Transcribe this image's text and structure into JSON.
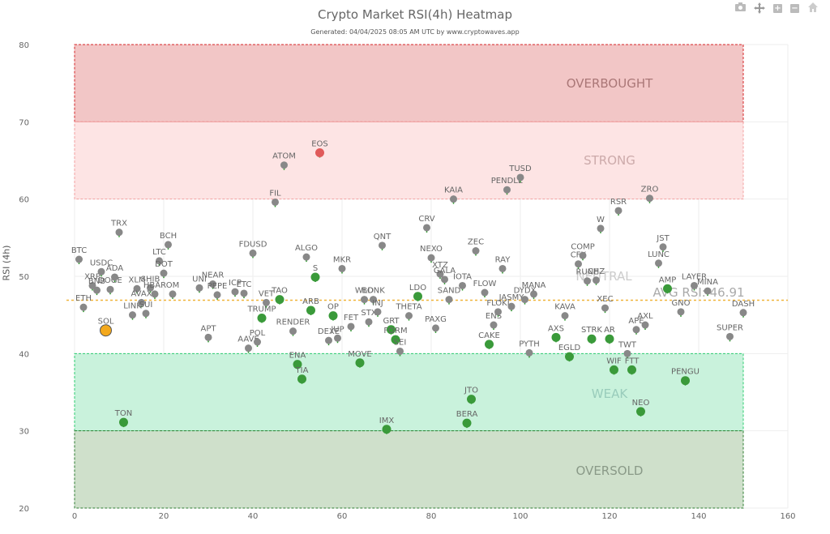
{
  "header": {
    "title": "Crypto Market RSI(4h) Heatmap",
    "subtitle": "Generated: 04/04/2025 08:05 AM UTC by www.cryptowaves.app"
  },
  "modebar": {
    "buttons": [
      {
        "name": "camera-icon",
        "glyph": "📷"
      },
      {
        "name": "pan-icon",
        "glyph": "✥"
      },
      {
        "name": "zoom-in-icon",
        "glyph": "+"
      },
      {
        "name": "zoom-out-icon",
        "glyph": "−"
      },
      {
        "name": "home-icon",
        "glyph": "⌂"
      }
    ]
  },
  "colors": {
    "overbought_fill": "#f2c6c6",
    "overbought_border": "#d62728",
    "strong_fill": "#fde4e4",
    "strong_border": "#f3a0a0",
    "weak_fill": "#c9f2dc",
    "weak_border": "#2ecc71",
    "oversold_fill": "#cfe0cb",
    "oversold_border": "#2e7d32",
    "avg_line": "#f0b43a",
    "dot_neutral": "#888888",
    "dot_weak": "#3a9a3a",
    "dot_strong": "#e05a5a",
    "dot_highlight": "#f4a91c"
  },
  "chart_data": {
    "type": "scatter",
    "title": "Crypto Market RSI(4h) Heatmap",
    "subtitle": "Generated: 04/04/2025 08:05 AM UTC by www.cryptowaves.app",
    "xlabel": "",
    "ylabel": "RSI (4h)",
    "xlim": [
      0,
      160
    ],
    "ylim": [
      20,
      80
    ],
    "xticks": [
      0,
      20,
      40,
      60,
      80,
      100,
      120,
      140,
      160
    ],
    "yticks": [
      20,
      30,
      40,
      50,
      60,
      70,
      80
    ],
    "grid": true,
    "zones": [
      {
        "label": "OVERBOUGHT",
        "y0": 70,
        "y1": 80,
        "x0": 0,
        "x1": 150
      },
      {
        "label": "STRONG",
        "y0": 60,
        "y1": 70,
        "x0": 0,
        "x1": 150
      },
      {
        "label": "NEUTRAL",
        "y0": 40,
        "y1": 60,
        "x0": 0,
        "x1": 150
      },
      {
        "label": "WEAK",
        "y0": 30,
        "y1": 40,
        "x0": 0,
        "x1": 150
      },
      {
        "label": "OVERSOLD",
        "y0": 20,
        "y1": 30,
        "x0": 0,
        "x1": 150
      }
    ],
    "average": {
      "label": "AVG RSI: 46.91",
      "value": 46.91
    },
    "points": [
      {
        "name": "BTC",
        "x": 1,
        "y": 52.2
      },
      {
        "name": "ETH",
        "x": 2,
        "y": 46.0
      },
      {
        "name": "XRP",
        "x": 4,
        "y": 48.8
      },
      {
        "name": "BNB",
        "x": 5,
        "y": 48.2
      },
      {
        "name": "USDC",
        "x": 6,
        "y": 50.6
      },
      {
        "name": "SOL",
        "x": 7,
        "y": 43.0,
        "highlight": true
      },
      {
        "name": "DOGE",
        "x": 8,
        "y": 48.3
      },
      {
        "name": "ADA",
        "x": 9,
        "y": 49.9
      },
      {
        "name": "TRX",
        "x": 10,
        "y": 55.7
      },
      {
        "name": "TON",
        "x": 11,
        "y": 31.1
      },
      {
        "name": "LINK",
        "x": 13,
        "y": 45.0
      },
      {
        "name": "XLM",
        "x": 14,
        "y": 48.4
      },
      {
        "name": "AVAX",
        "x": 15,
        "y": 46.6
      },
      {
        "name": "SUI",
        "x": 16,
        "y": 45.2
      },
      {
        "name": "SHIB",
        "x": 17,
        "y": 48.5
      },
      {
        "name": "HBAR",
        "x": 18,
        "y": 47.7
      },
      {
        "name": "LTC",
        "x": 19,
        "y": 52.0
      },
      {
        "name": "DOT",
        "x": 20,
        "y": 50.4
      },
      {
        "name": "BCH",
        "x": 21,
        "y": 54.1
      },
      {
        "name": "OM",
        "x": 22,
        "y": 47.7
      },
      {
        "name": "UNI",
        "x": 28,
        "y": 48.5
      },
      {
        "name": "APT",
        "x": 30,
        "y": 42.1
      },
      {
        "name": "NEAR",
        "x": 31,
        "y": 49.0
      },
      {
        "name": "PEPE",
        "x": 32,
        "y": 47.6
      },
      {
        "name": "ICP",
        "x": 36,
        "y": 48.0
      },
      {
        "name": "ETC",
        "x": 38,
        "y": 47.8
      },
      {
        "name": "AAVE",
        "x": 39,
        "y": 40.7
      },
      {
        "name": "FDUSD",
        "x": 40,
        "y": 53.0
      },
      {
        "name": "POL",
        "x": 41,
        "y": 41.5
      },
      {
        "name": "TRUMP",
        "x": 42,
        "y": 44.6
      },
      {
        "name": "VET",
        "x": 43,
        "y": 46.6
      },
      {
        "name": "FIL",
        "x": 45,
        "y": 59.6
      },
      {
        "name": "TAO",
        "x": 46,
        "y": 47.0
      },
      {
        "name": "ATOM",
        "x": 47,
        "y": 64.4
      },
      {
        "name": "RENDER",
        "x": 49,
        "y": 42.9
      },
      {
        "name": "ENA",
        "x": 50,
        "y": 38.6
      },
      {
        "name": "TIA",
        "x": 51,
        "y": 36.7
      },
      {
        "name": "ALGO",
        "x": 52,
        "y": 52.5
      },
      {
        "name": "ARB",
        "x": 53,
        "y": 45.6
      },
      {
        "name": "S",
        "x": 54,
        "y": 49.9
      },
      {
        "name": "EOS",
        "x": 55,
        "y": 66.0
      },
      {
        "name": "DEXE",
        "x": 57,
        "y": 41.7
      },
      {
        "name": "OP",
        "x": 58,
        "y": 44.9
      },
      {
        "name": "JUP",
        "x": 59,
        "y": 42.0
      },
      {
        "name": "MKR",
        "x": 60,
        "y": 51.0
      },
      {
        "name": "FET",
        "x": 62,
        "y": 43.5
      },
      {
        "name": "MOVE",
        "x": 64,
        "y": 38.8
      },
      {
        "name": "WLD",
        "x": 65,
        "y": 47.0
      },
      {
        "name": "STX",
        "x": 66,
        "y": 44.1
      },
      {
        "name": "BONK",
        "x": 67,
        "y": 47.0
      },
      {
        "name": "INJ",
        "x": 68,
        "y": 45.4
      },
      {
        "name": "QNT",
        "x": 69,
        "y": 54.0
      },
      {
        "name": "IMX",
        "x": 70,
        "y": 30.2
      },
      {
        "name": "GRT",
        "x": 71,
        "y": 43.1
      },
      {
        "name": "FORM",
        "x": 72,
        "y": 41.8
      },
      {
        "name": "SEI",
        "x": 73,
        "y": 40.3
      },
      {
        "name": "THETA",
        "x": 75,
        "y": 44.9
      },
      {
        "name": "LDO",
        "x": 77,
        "y": 47.4
      },
      {
        "name": "CRV",
        "x": 79,
        "y": 56.3
      },
      {
        "name": "NEXO",
        "x": 80,
        "y": 52.4
      },
      {
        "name": "PAXG",
        "x": 81,
        "y": 43.3
      },
      {
        "name": "XTZ",
        "x": 82,
        "y": 50.3
      },
      {
        "name": "GALA",
        "x": 83,
        "y": 49.6
      },
      {
        "name": "SAND",
        "x": 84,
        "y": 47.0
      },
      {
        "name": "KAIA",
        "x": 85,
        "y": 60.0
      },
      {
        "name": "IOTA",
        "x": 87,
        "y": 48.8
      },
      {
        "name": "BERA",
        "x": 88,
        "y": 31.0
      },
      {
        "name": "JTO",
        "x": 89,
        "y": 34.1
      },
      {
        "name": "ZEC",
        "x": 90,
        "y": 53.3
      },
      {
        "name": "FLOW",
        "x": 92,
        "y": 47.9
      },
      {
        "name": "CAKE",
        "x": 93,
        "y": 41.2
      },
      {
        "name": "ENS",
        "x": 94,
        "y": 43.7
      },
      {
        "name": "FLOKI",
        "x": 95,
        "y": 45.4
      },
      {
        "name": "RAY",
        "x": 96,
        "y": 51.0
      },
      {
        "name": "PENDLE",
        "x": 97,
        "y": 61.2
      },
      {
        "name": "JASMY",
        "x": 98,
        "y": 46.1
      },
      {
        "name": "TUSD",
        "x": 100,
        "y": 62.8
      },
      {
        "name": "DYDX",
        "x": 101,
        "y": 47.0
      },
      {
        "name": "PYTH",
        "x": 102,
        "y": 40.1
      },
      {
        "name": "MANA",
        "x": 103,
        "y": 47.7
      },
      {
        "name": "AXS",
        "x": 108,
        "y": 42.1
      },
      {
        "name": "KAVA",
        "x": 110,
        "y": 44.9
      },
      {
        "name": "EGLD",
        "x": 111,
        "y": 39.6
      },
      {
        "name": "CFX",
        "x": 113,
        "y": 51.6
      },
      {
        "name": "COMP",
        "x": 114,
        "y": 52.7
      },
      {
        "name": "RUNE",
        "x": 115,
        "y": 49.4
      },
      {
        "name": "STRK",
        "x": 116,
        "y": 41.9
      },
      {
        "name": "CHZ",
        "x": 117,
        "y": 49.5
      },
      {
        "name": "W",
        "x": 118,
        "y": 56.2
      },
      {
        "name": "XEC",
        "x": 119,
        "y": 45.9
      },
      {
        "name": "AR",
        "x": 120,
        "y": 41.9
      },
      {
        "name": "WIF",
        "x": 121,
        "y": 37.9
      },
      {
        "name": "RSR",
        "x": 122,
        "y": 58.5
      },
      {
        "name": "TWT",
        "x": 124,
        "y": 40.0
      },
      {
        "name": "FTT",
        "x": 125,
        "y": 37.9
      },
      {
        "name": "APE",
        "x": 126,
        "y": 43.1
      },
      {
        "name": "NEO",
        "x": 127,
        "y": 32.5
      },
      {
        "name": "AXL",
        "x": 128,
        "y": 43.7
      },
      {
        "name": "ZRO",
        "x": 129,
        "y": 60.1
      },
      {
        "name": "LUNC",
        "x": 131,
        "y": 51.7
      },
      {
        "name": "JST",
        "x": 132,
        "y": 53.8
      },
      {
        "name": "AMP",
        "x": 133,
        "y": 48.4,
        "green": true
      },
      {
        "name": "GNO",
        "x": 136,
        "y": 45.4
      },
      {
        "name": "PENGU",
        "x": 137,
        "y": 36.5
      },
      {
        "name": "LAYER",
        "x": 139,
        "y": 48.8
      },
      {
        "name": "MINA",
        "x": 142,
        "y": 48.1
      },
      {
        "name": "SUPER",
        "x": 147,
        "y": 42.2
      },
      {
        "name": "DASH",
        "x": 150,
        "y": 45.3
      }
    ]
  }
}
